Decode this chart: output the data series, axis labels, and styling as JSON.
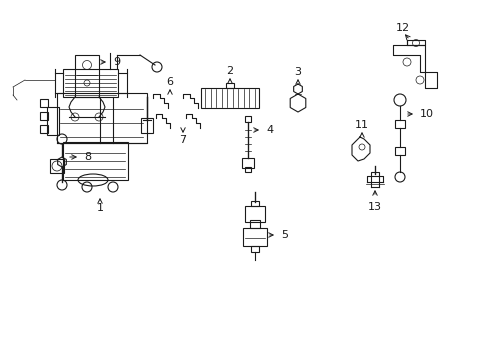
{
  "bg_color": "#ffffff",
  "line_color": "#1a1a1a",
  "lw": 0.8,
  "tlw": 0.5,
  "fs": 8.0,
  "label_positions": {
    "1": [
      100,
      17,
      100,
      10
    ],
    "2": [
      218,
      285,
      218,
      292
    ],
    "3": [
      298,
      260,
      298,
      267
    ],
    "4": [
      258,
      210,
      268,
      210
    ],
    "5": [
      258,
      120,
      268,
      120
    ],
    "6": [
      175,
      258,
      175,
      265
    ],
    "7": [
      175,
      238,
      175,
      231
    ],
    "8": [
      65,
      188,
      55,
      188
    ],
    "9": [
      100,
      278,
      115,
      278
    ],
    "10": [
      405,
      205,
      415,
      205
    ],
    "11": [
      360,
      222,
      360,
      230
    ],
    "12": [
      395,
      318,
      388,
      325
    ],
    "13": [
      375,
      175,
      375,
      168
    ]
  }
}
